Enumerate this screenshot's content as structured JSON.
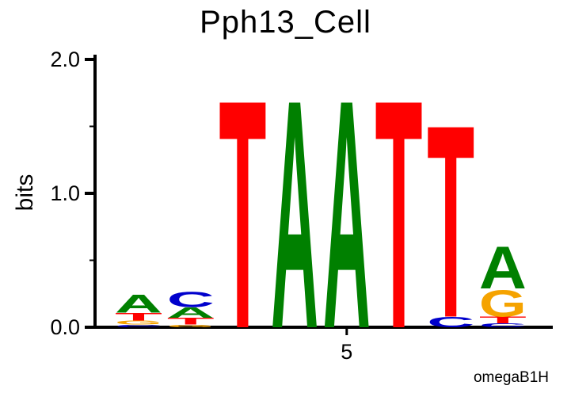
{
  "title": "Pph13_Cell",
  "attribution": "omegaB1H",
  "axes": {
    "ylabel": "bits",
    "ymax": 2.0,
    "yticks": [
      {
        "value": 0.0,
        "label": "0.0"
      },
      {
        "value": 1.0,
        "label": "1.0"
      },
      {
        "value": 2.0,
        "label": "2.0"
      }
    ],
    "yminor": [
      0.5,
      1.5
    ],
    "xticks": [
      {
        "pos": 5,
        "label": "5"
      }
    ]
  },
  "colors": {
    "A": "#008000",
    "C": "#0000cc",
    "G": "#f5a300",
    "T": "#ff0000"
  },
  "chart_data": {
    "type": "sequence-logo",
    "title": "Pph13_Cell",
    "ylabel": "bits",
    "ylim": [
      0,
      2
    ],
    "unit": "bits",
    "num_positions": 8,
    "positions": [
      {
        "pos": 1,
        "stack": [
          {
            "base": "C",
            "bits": 0.02
          },
          {
            "base": "G",
            "bits": 0.03
          },
          {
            "base": "T",
            "bits": 0.06
          },
          {
            "base": "A",
            "bits": 0.14
          }
        ]
      },
      {
        "pos": 2,
        "stack": [
          {
            "base": "G",
            "bits": 0.02
          },
          {
            "base": "T",
            "bits": 0.05
          },
          {
            "base": "A",
            "bits": 0.08
          },
          {
            "base": "C",
            "bits": 0.12
          }
        ]
      },
      {
        "pos": 3,
        "stack": [
          {
            "base": "T",
            "bits": 1.78
          }
        ]
      },
      {
        "pos": 4,
        "stack": [
          {
            "base": "A",
            "bits": 1.78
          }
        ]
      },
      {
        "pos": 5,
        "stack": [
          {
            "base": "A",
            "bits": 1.78
          }
        ]
      },
      {
        "pos": 6,
        "stack": [
          {
            "base": "T",
            "bits": 1.78
          }
        ]
      },
      {
        "pos": 7,
        "stack": [
          {
            "base": "C",
            "bits": 0.08
          },
          {
            "base": "T",
            "bits": 1.5
          }
        ]
      },
      {
        "pos": 8,
        "stack": [
          {
            "base": "C",
            "bits": 0.03
          },
          {
            "base": "T",
            "bits": 0.05
          },
          {
            "base": "G",
            "bits": 0.21
          },
          {
            "base": "A",
            "bits": 0.33
          }
        ]
      }
    ]
  }
}
